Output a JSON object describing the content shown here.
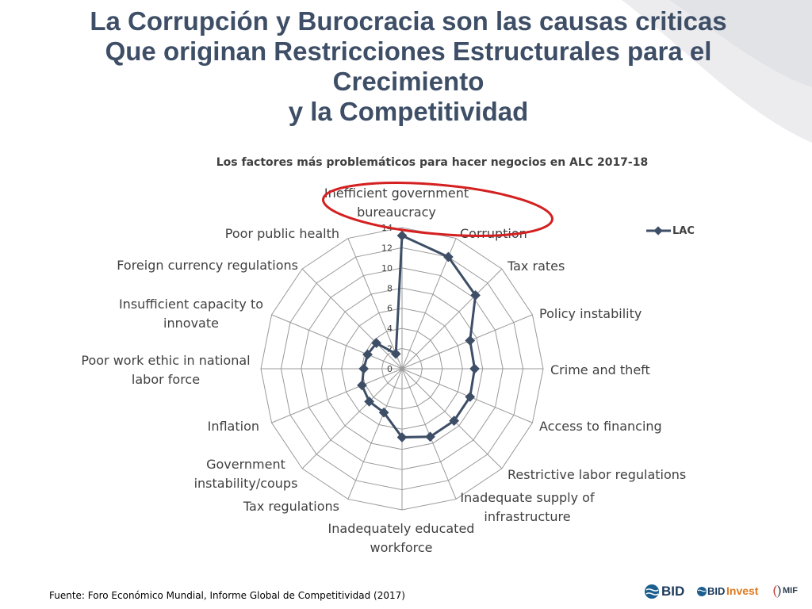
{
  "slide": {
    "title_lines": [
      "La Corrupción y Burocracia son las causas criticas",
      "Que originan Restricciones Estructurales para el",
      "Crecimiento",
      "y la Competitividad"
    ],
    "source": "Fuente: Foro Económico Mundial, Informe Global de Competitividad (2017)",
    "logos": {
      "bid": "BID",
      "bid_invest_left": "BID",
      "bid_invest_right": "Invest",
      "mif": "MIF"
    }
  },
  "chart_data": {
    "type": "radar",
    "title": "Los factores más problemáticos para hacer negocios en ALC 2017-18",
    "categories": [
      "Inefficient government bureaucracy",
      "Corruption",
      "Tax rates",
      "Policy instability",
      "Crime and theft",
      "Access to financing",
      "Restrictive labor regulations",
      "Inadequate supply of infrastructure",
      "Inadequately educated workforce",
      "Tax regulations",
      "Government instability/coups",
      "Inflation",
      "Poor work ethic in national labor force",
      "Insufficient capacity to innovate",
      "Foreign currency regulations",
      "Poor public health"
    ],
    "series": [
      {
        "name": "LAC",
        "color": "#3d4e66",
        "values": [
          13.2,
          12.0,
          10.3,
          7.3,
          7.2,
          7.3,
          7.3,
          7.3,
          6.8,
          4.7,
          4.6,
          4.3,
          3.8,
          3.7,
          3.6,
          1.6
        ]
      }
    ],
    "rlim": [
      0,
      14
    ],
    "ticks": [
      0,
      2,
      4,
      6,
      8,
      10,
      12,
      14
    ],
    "legend_position": "top-right",
    "grid": true,
    "highlight": "red ellipse around Inefficient government bureaucracy and Corruption"
  }
}
